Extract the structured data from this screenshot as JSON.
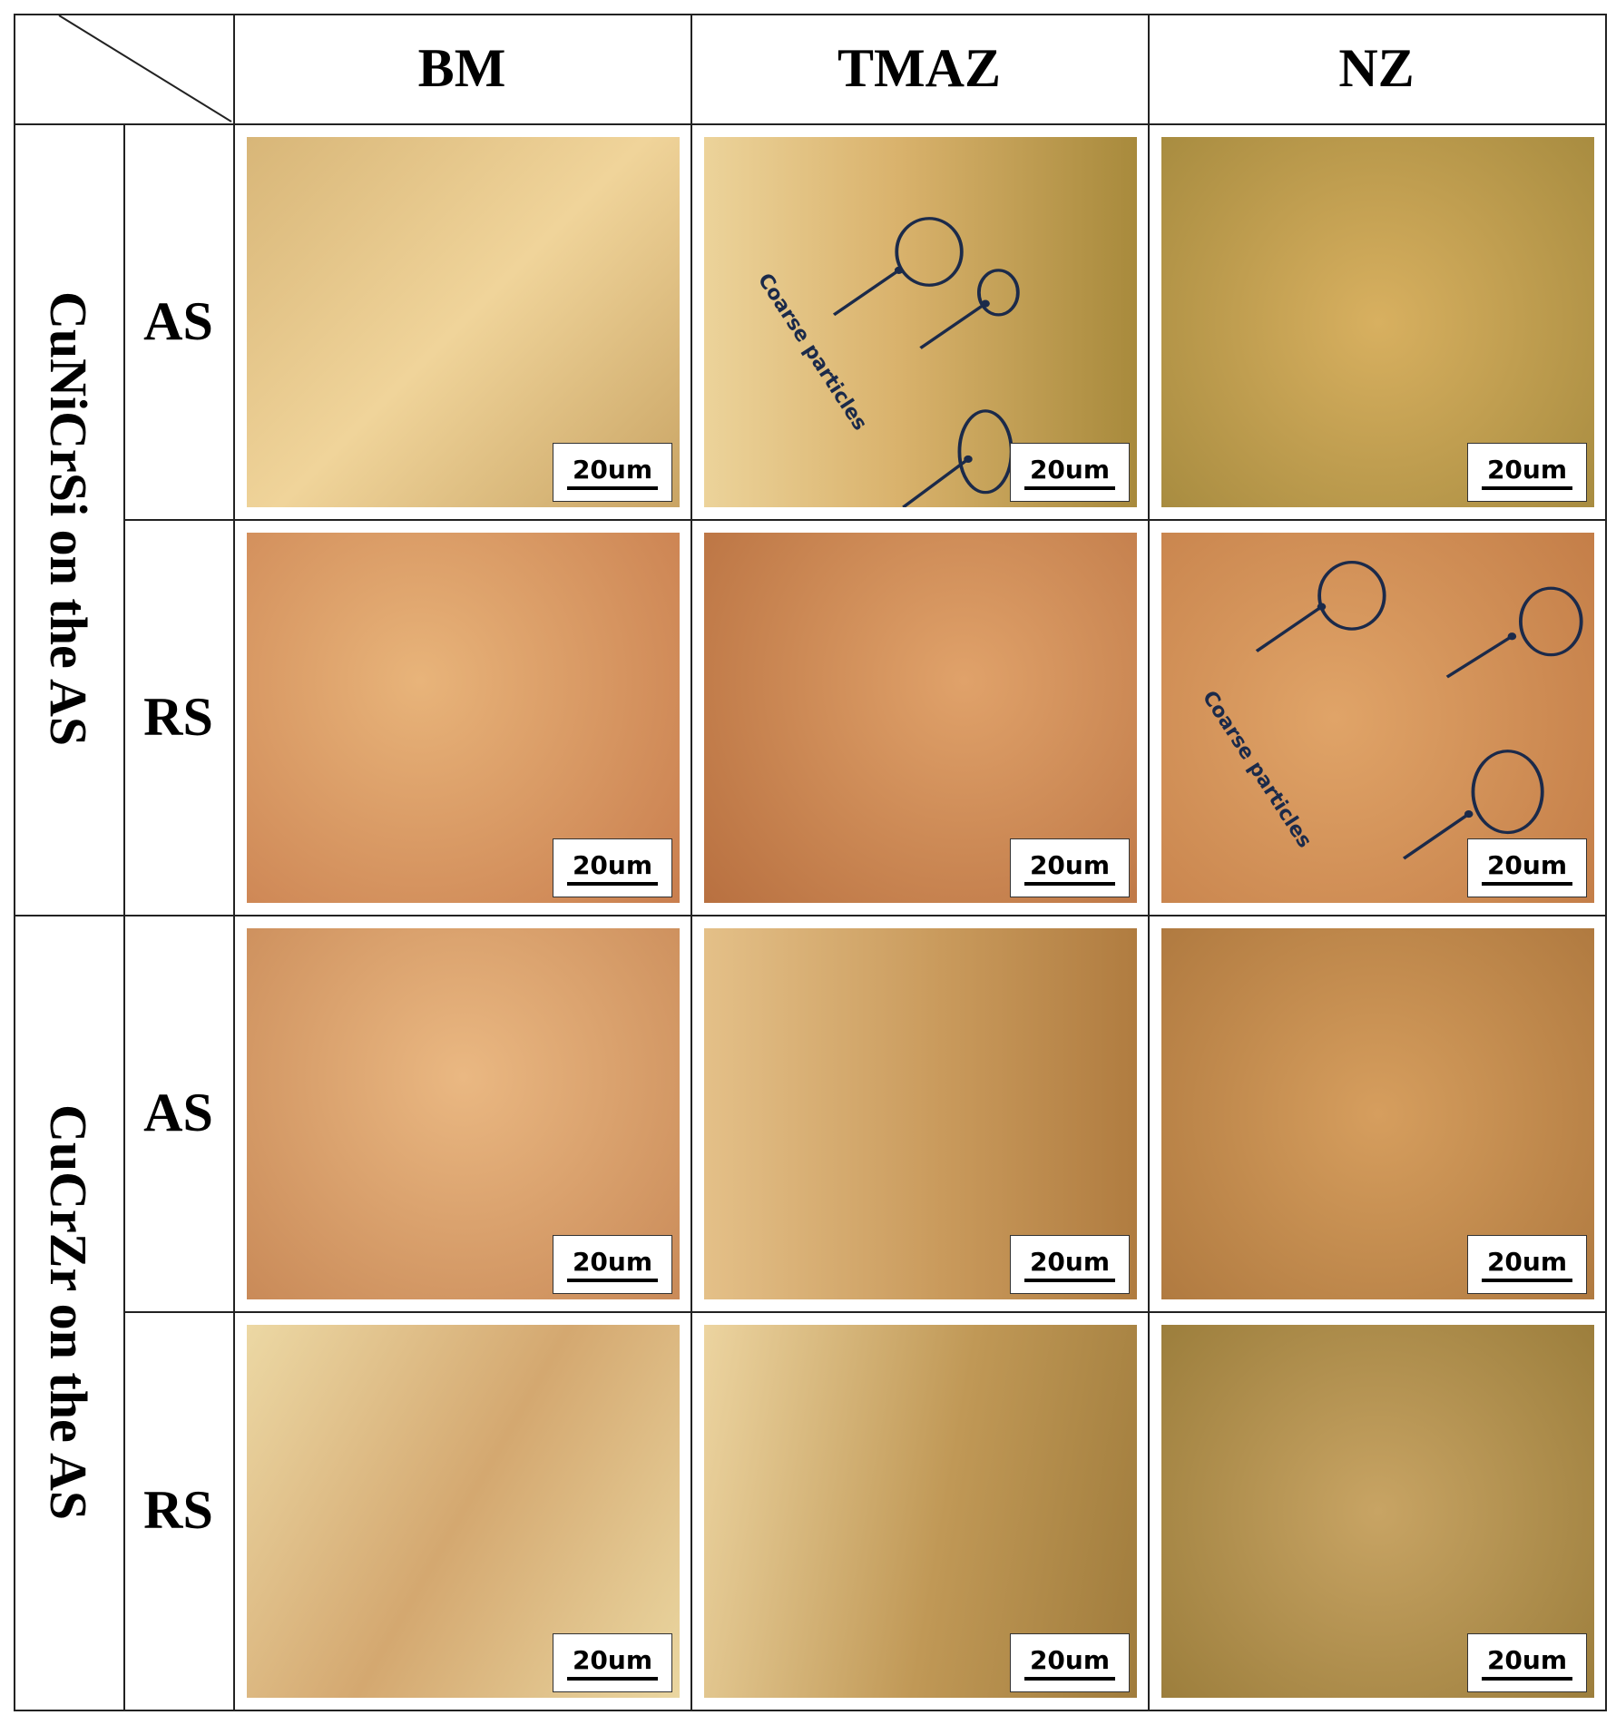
{
  "header": {
    "columns": [
      "BM",
      "TMAZ",
      "NZ"
    ]
  },
  "groups": [
    {
      "label": "CuNiCrSi on the AS",
      "rows": [
        {
          "side": "AS",
          "cells": [
            {
              "scale_bar": "20um"
            },
            {
              "scale_bar": "20um",
              "annotation": "Coarse particles"
            },
            {
              "scale_bar": "20um"
            }
          ]
        },
        {
          "side": "RS",
          "cells": [
            {
              "scale_bar": "20um"
            },
            {
              "scale_bar": "20um"
            },
            {
              "scale_bar": "20um",
              "annotation": "Coarse particles"
            }
          ]
        }
      ]
    },
    {
      "label": "CuCrZr on the AS",
      "rows": [
        {
          "side": "AS",
          "cells": [
            {
              "scale_bar": "20um"
            },
            {
              "scale_bar": "20um"
            },
            {
              "scale_bar": "20um"
            }
          ]
        },
        {
          "side": "RS",
          "cells": [
            {
              "scale_bar": "20um"
            },
            {
              "scale_bar": "20um"
            },
            {
              "scale_bar": "20um"
            }
          ]
        }
      ]
    }
  ]
}
